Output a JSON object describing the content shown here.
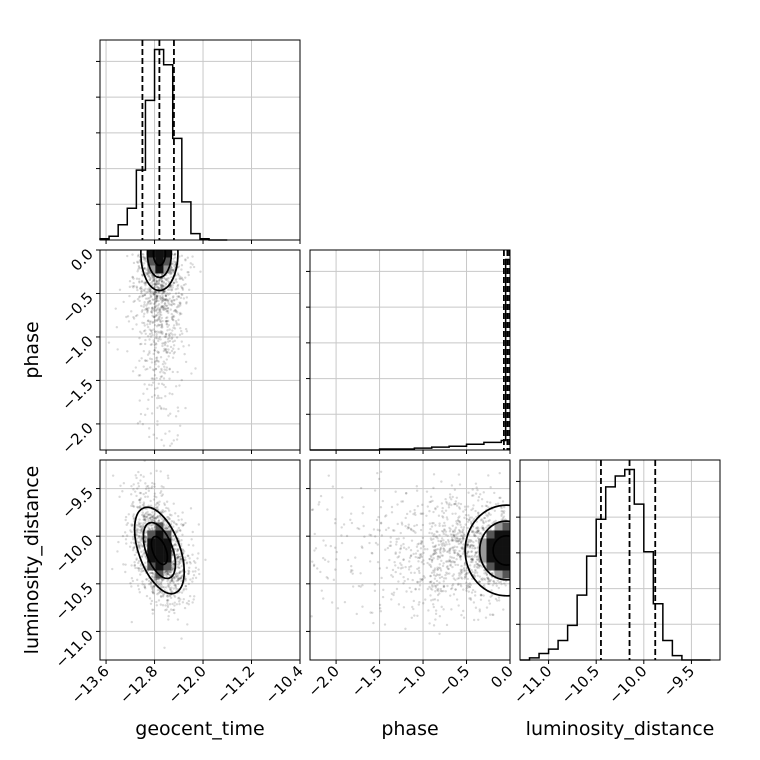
{
  "chart_data": {
    "type": "corner",
    "grid": true,
    "parameters": [
      {
        "name": "geocent_time",
        "label": "geocent_time",
        "range": [
          -13.7,
          -10.4
        ],
        "ticks": [
          -13.6,
          -12.8,
          -12.0,
          -11.2,
          -10.4
        ],
        "tick_labels": [
          "−13.6",
          "−12.8",
          "−12.0",
          "−11.2",
          "−10.4"
        ],
        "histogram": {
          "bin_edges": [
            -13.7,
            -13.55,
            -13.4,
            -13.25,
            -13.1,
            -12.95,
            -12.8,
            -12.65,
            -12.5,
            -12.35,
            -12.2,
            -12.05,
            -11.9,
            -11.75,
            -11.6
          ],
          "counts": [
            1,
            3,
            12,
            25,
            55,
            110,
            150,
            138,
            80,
            30,
            5,
            1,
            0,
            0
          ],
          "quantiles": [
            -13.0,
            -12.72,
            -12.48
          ]
        }
      },
      {
        "name": "phase",
        "label": "phase",
        "range": [
          -2.3,
          0.0
        ],
        "ticks": [
          -2.0,
          -1.5,
          -1.0,
          -0.5,
          0.0
        ],
        "tick_labels": [
          "−2.0",
          "−1.5",
          "−1.0",
          "−0.5",
          "0.0"
        ],
        "histogram": {
          "bin_edges": [
            -2.3,
            -2.1,
            -1.9,
            -1.7,
            -1.5,
            -1.3,
            -1.1,
            -0.9,
            -0.7,
            -0.5,
            -0.3,
            -0.1,
            -0.05,
            0.0
          ],
          "counts": [
            0,
            0,
            0,
            0,
            1,
            1,
            2,
            3,
            4,
            6,
            8,
            10,
            200
          ],
          "quantiles": [
            -0.07,
            -0.03,
            -0.01
          ]
        }
      },
      {
        "name": "luminosity_distance",
        "label": "luminosity_distance",
        "range": [
          -11.3,
          -9.2
        ],
        "ticks": [
          -11.0,
          -10.5,
          -10.0,
          -9.5
        ],
        "tick_labels": [
          "−11.0",
          "−10.5",
          "−10.0",
          "−9.5"
        ],
        "histogram": {
          "bin_edges": [
            -11.3,
            -11.2,
            -11.1,
            -11.0,
            -10.9,
            -10.8,
            -10.7,
            -10.6,
            -10.5,
            -10.4,
            -10.3,
            -10.2,
            -10.1,
            -10.0,
            -9.9,
            -9.8,
            -9.7,
            -9.6,
            -9.5,
            -9.4,
            -9.3
          ],
          "counts": [
            0,
            1,
            3,
            5,
            9,
            16,
            30,
            48,
            65,
            80,
            85,
            88,
            72,
            50,
            26,
            9,
            2,
            0,
            0,
            0
          ],
          "quantiles": [
            -10.45,
            -10.15,
            -9.88
          ]
        }
      }
    ],
    "contours_2d": [
      {
        "x": "geocent_time",
        "y": "phase",
        "peak": [
          -12.72,
          -0.04
        ],
        "spread": [
          0.18,
          0.25
        ]
      },
      {
        "x": "geocent_time",
        "y": "luminosity_distance",
        "peak": [
          -12.72,
          -10.15
        ],
        "spread": [
          0.2,
          0.28
        ]
      },
      {
        "x": "phase",
        "y": "luminosity_distance",
        "peak": [
          -0.04,
          -10.15
        ],
        "spread": [
          0.28,
          0.28
        ]
      }
    ]
  }
}
